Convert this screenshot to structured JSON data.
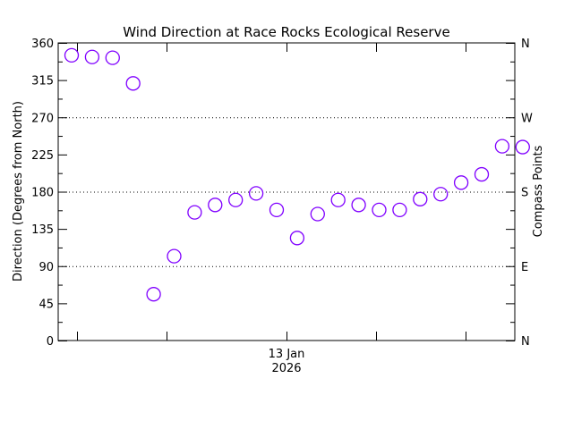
{
  "chart_data": {
    "type": "scatter",
    "title": "Wind Direction at Race Rocks Ecological Reserve",
    "ylabel": "Direction (Degrees from North)",
    "ylabel_right": "Compass Points",
    "ylim": [
      0,
      360
    ],
    "y_ticks": [
      "0",
      "45",
      "90",
      "135",
      "180",
      "225",
      "270",
      "315",
      "360"
    ],
    "y_ticks_right": [
      {
        "value": 0,
        "label": "N"
      },
      {
        "value": 90,
        "label": "E"
      },
      {
        "value": 180,
        "label": "S"
      },
      {
        "value": 270,
        "label": "W"
      },
      {
        "value": 360,
        "label": "N"
      }
    ],
    "x_date_label": {
      "line1": "13 Jan",
      "line2": "2026"
    },
    "grid": "dotted horizontal lines at 90, 180, 270",
    "marker": "open circle",
    "marker_color": "#8000ff",
    "values": [
      345,
      343,
      342,
      311,
      56,
      102,
      155,
      164,
      170,
      178,
      158,
      124,
      153,
      170,
      164,
      158,
      158,
      171,
      177,
      191,
      201,
      235,
      234
    ]
  }
}
